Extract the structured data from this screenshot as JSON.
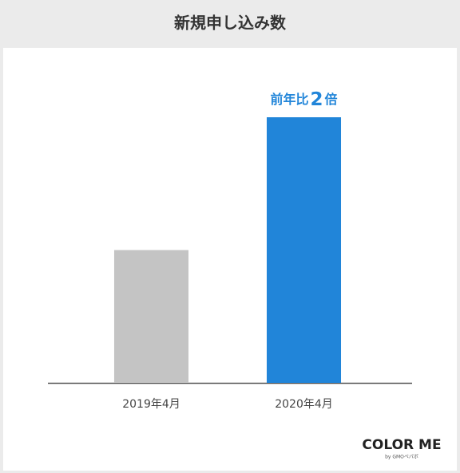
{
  "chart_data": {
    "type": "bar",
    "title": "新規申し込み数",
    "categories": [
      "2019年4月",
      "2020年4月"
    ],
    "values": [
      1,
      2
    ],
    "colors": [
      "#c4c4c4",
      "#2185d9"
    ],
    "ylim": [
      0,
      2
    ],
    "annotation": [
      "前年比",
      "2",
      "倍"
    ]
  },
  "brand": {
    "logo": "COLOR ME",
    "sub": "by GMOペパボ"
  }
}
